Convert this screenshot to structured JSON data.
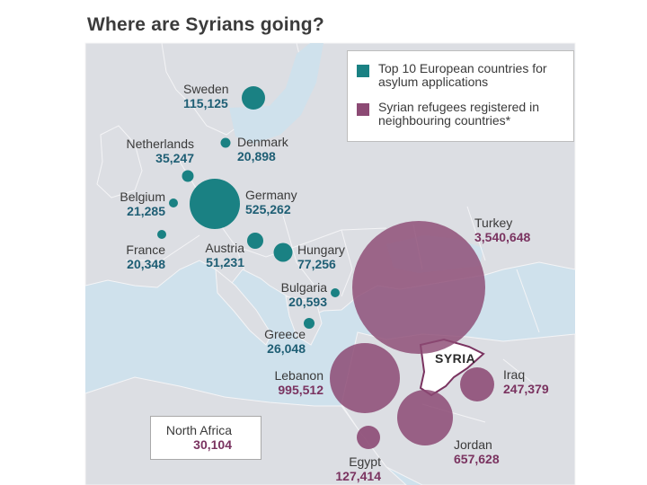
{
  "title": "Where are Syrians going?",
  "colors": {
    "europe": "#1a8183",
    "neighbours": "#8c4a74",
    "europe_value_text": "#1e5e74",
    "neighbours_value_text": "#7a3360",
    "land": "#dcdee3",
    "sea": "#cfe1ec"
  },
  "legend": {
    "europe": "Top 10 European countries for asylum applications",
    "neighbours": "Syrian refugees registered in neighbouring countries*"
  },
  "europe": {
    "sweden": {
      "name": "Sweden",
      "value": "115,125"
    },
    "denmark": {
      "name": "Denmark",
      "value": "20,898"
    },
    "netherlands": {
      "name": "Netherlands",
      "value": "35,247"
    },
    "belgium": {
      "name": "Belgium",
      "value": "21,285"
    },
    "germany": {
      "name": "Germany",
      "value": "525,262"
    },
    "france": {
      "name": "France",
      "value": "20,348"
    },
    "austria": {
      "name": "Austria",
      "value": "51,231"
    },
    "hungary": {
      "name": "Hungary",
      "value": "77,256"
    },
    "bulgaria": {
      "name": "Bulgaria",
      "value": "20,593"
    },
    "greece": {
      "name": "Greece",
      "value": "26,048"
    }
  },
  "neighbours": {
    "turkey": {
      "name": "Turkey",
      "value": "3,540,648"
    },
    "lebanon": {
      "name": "Lebanon",
      "value": "995,512"
    },
    "iraq": {
      "name": "Iraq",
      "value": "247,379"
    },
    "jordan": {
      "name": "Jordan",
      "value": "657,628"
    },
    "egypt": {
      "name": "Egypt",
      "value": "127,414"
    },
    "north_africa": {
      "name": "North Africa",
      "value": "30,104"
    }
  },
  "syria_label": "SYRIA"
}
